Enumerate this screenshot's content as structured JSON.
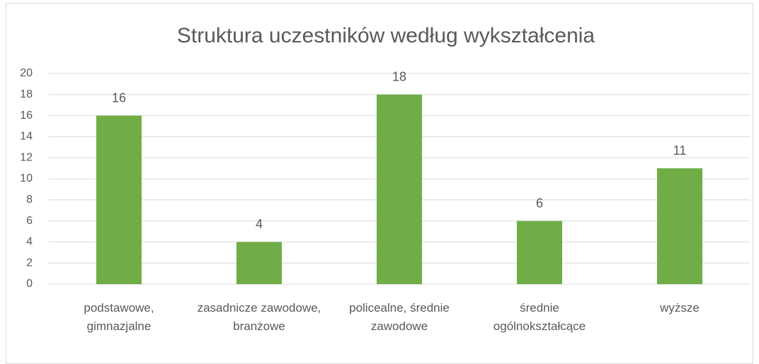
{
  "chart_data": {
    "type": "bar",
    "title": "Struktura uczestników według wykształcenia",
    "categories": [
      "podstawowe, gimnazjalne",
      "zasadnicze zawodowe, branżowe",
      "policealne, średnie zawodowe",
      "średnie ogólnokształcące",
      "wyższe"
    ],
    "values": [
      16,
      4,
      18,
      6,
      11
    ],
    "color": "#70ad47",
    "ylim": [
      0,
      20
    ],
    "yticks": [
      0,
      2,
      4,
      6,
      8,
      10,
      12,
      14,
      16,
      18,
      20
    ],
    "grid": true
  }
}
